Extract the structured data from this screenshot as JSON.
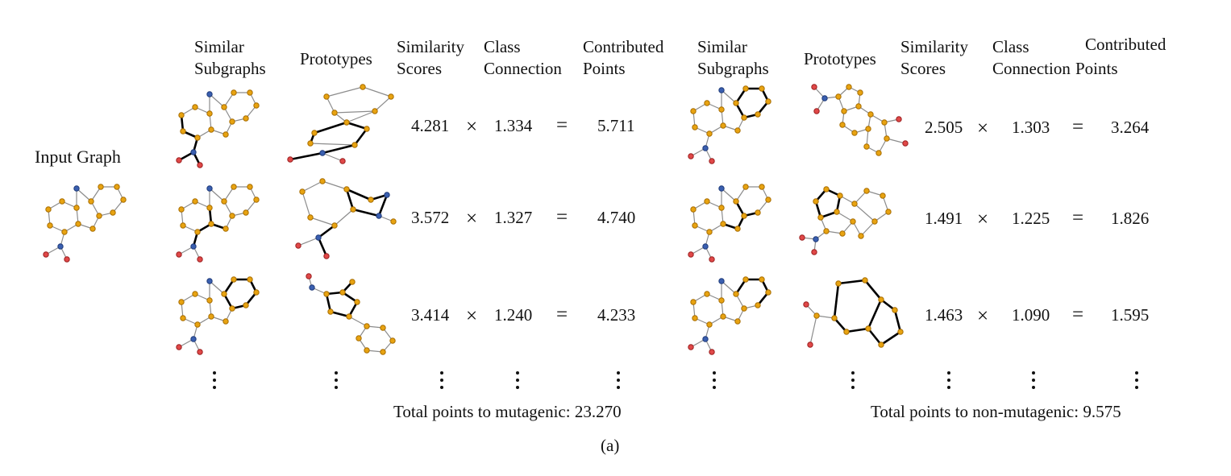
{
  "input_label": "Input Graph",
  "left_panel": {
    "headers": {
      "similar": [
        "Similar",
        "Subgraphs"
      ],
      "prototypes": "Prototypes",
      "scores": [
        "Similarity",
        "Scores"
      ],
      "class": [
        "Class",
        "Connection"
      ],
      "points": [
        "Contributed",
        "Points"
      ]
    },
    "rows": [
      {
        "score": "4.281",
        "class": "1.334",
        "points": "5.711"
      },
      {
        "score": "3.572",
        "class": "1.327",
        "points": "4.740"
      },
      {
        "score": "3.414",
        "class": "1.240",
        "points": "4.233"
      }
    ],
    "total": "Total points to mutagenic: 23.270"
  },
  "right_panel": {
    "headers": {
      "similar": [
        "Similar",
        "Subgraphs"
      ],
      "prototypes": "Prototypes",
      "scores": [
        "Similarity",
        "Scores"
      ],
      "class": [
        "Class",
        "Connection"
      ],
      "points": [
        "Contributed",
        "Points"
      ]
    },
    "rows": [
      {
        "score": "2.505",
        "class": "1.303",
        "points": "3.264"
      },
      {
        "score": "1.491",
        "class": "1.225",
        "points": "1.826"
      },
      {
        "score": "1.463",
        "class": "1.090",
        "points": "1.595"
      }
    ],
    "total": "Total points to non-mutagenic: 9.575"
  },
  "operators": {
    "times": "×",
    "equals": "="
  },
  "caption": "(a)",
  "node_colors": {
    "carbon": "#e8a311",
    "nitrogen": "#3a5fb0",
    "oxygen": "#e04848"
  }
}
